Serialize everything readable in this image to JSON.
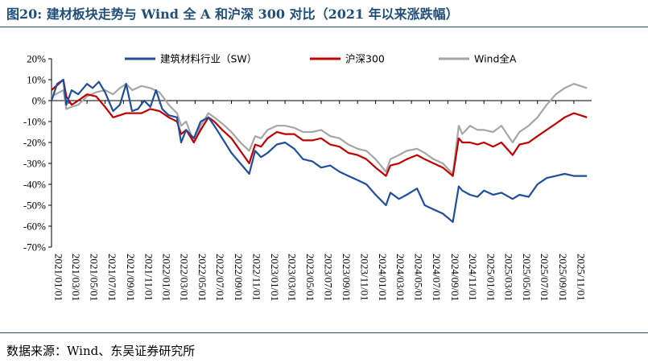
{
  "header": {
    "title": "图20:  建材板块走势与 Wind 全 A 和沪深 300 对比（2021 年以来涨跌幅）"
  },
  "footer": {
    "source": "数据来源：Wind、东吴证券研究所"
  },
  "chart_data": {
    "type": "line",
    "title": "图20:  建材板块走势与 Wind 全 A 和沪深 300 对比（2021 年以来涨跌幅）",
    "xlabel": "",
    "ylabel": "",
    "ylim": [
      -70,
      20
    ],
    "yticks": [
      20,
      10,
      0,
      -10,
      -20,
      -30,
      -40,
      -50,
      -60,
      -70
    ],
    "ytick_labels": [
      "20%",
      "10%",
      "0%",
      "-10%",
      "-20%",
      "-30%",
      "-40%",
      "-50%",
      "-60%",
      "-70%"
    ],
    "xlim": [
      "2021-01-01",
      "2025-12-31"
    ],
    "xtick_labels": [
      "2021/01/01",
      "2021/03/01",
      "2021/05/01",
      "2021/07/01",
      "2021/09/01",
      "2021/11/01",
      "2022/01/01",
      "2022/03/01",
      "2022/05/01",
      "2022/07/01",
      "2022/09/01",
      "2022/11/01",
      "2023/01/01",
      "2023/03/01",
      "2023/05/01",
      "2023/07/01",
      "2023/09/01",
      "2023/11/01",
      "2024/01/01",
      "2024/03/01",
      "2024/05/01",
      "2024/07/01",
      "2024/09/01",
      "2024/11/01",
      "2025/01/01",
      "2025/03/01",
      "2025/05/01",
      "2025/07/01",
      "2025/09/01",
      "2025/11/01"
    ],
    "grid": false,
    "legend": "top",
    "series": [
      {
        "name": "建筑材料行业（SW）",
        "color": "#1F4E9C",
        "x": [
          "2021-01-01",
          "2021-01-20",
          "2021-02-10",
          "2021-02-20",
          "2021-03-10",
          "2021-04-01",
          "2021-05-01",
          "2021-05-20",
          "2021-06-10",
          "2021-07-01",
          "2021-07-28",
          "2021-08-20",
          "2021-09-10",
          "2021-09-30",
          "2021-10-20",
          "2021-11-10",
          "2021-12-01",
          "2021-12-20",
          "2022-01-10",
          "2022-02-01",
          "2022-03-01",
          "2022-03-15",
          "2022-04-01",
          "2022-04-27",
          "2022-05-20",
          "2022-06-15",
          "2022-07-05",
          "2022-08-01",
          "2022-09-01",
          "2022-10-01",
          "2022-10-31",
          "2022-11-20",
          "2022-12-10",
          "2023-01-01",
          "2023-02-01",
          "2023-03-01",
          "2023-04-01",
          "2023-05-01",
          "2023-06-01",
          "2023-07-01",
          "2023-08-01",
          "2023-09-01",
          "2023-10-01",
          "2023-11-01",
          "2023-12-01",
          "2024-01-01",
          "2024-02-05",
          "2024-02-20",
          "2024-03-20",
          "2024-04-15",
          "2024-05-20",
          "2024-06-15",
          "2024-07-15",
          "2024-08-15",
          "2024-09-18",
          "2024-10-08",
          "2024-10-20",
          "2024-11-15",
          "2024-12-10",
          "2025-01-01",
          "2025-02-01",
          "2025-03-01",
          "2025-04-08",
          "2025-05-01",
          "2025-06-01",
          "2025-07-01",
          "2025-08-01",
          "2025-09-01",
          "2025-10-01",
          "2025-11-01",
          "2025-12-15"
        ],
        "y": [
          0,
          8,
          10,
          -2,
          5,
          3,
          8,
          6,
          9,
          4,
          -5,
          -2,
          8,
          -5,
          -4,
          0,
          -3,
          5,
          -4,
          -7,
          -8,
          -20,
          -14,
          -18,
          -10,
          -8,
          -12,
          -18,
          -25,
          -30,
          -35,
          -24,
          -27,
          -25,
          -21,
          -20,
          -23,
          -28,
          -29,
          -32,
          -31,
          -34,
          -36,
          -38,
          -40,
          -45,
          -50,
          -44,
          -47,
          -45,
          -42,
          -50,
          -52,
          -54,
          -58,
          -41,
          -43,
          -45,
          -46,
          -43,
          -45,
          -44,
          -47,
          -45,
          -46,
          -40,
          -37,
          -36,
          -35,
          -36,
          -36
        ]
      },
      {
        "name": "沪深300",
        "color": "#C00000",
        "x": [
          "2021-01-01",
          "2021-02-10",
          "2021-02-20",
          "2021-03-10",
          "2021-04-01",
          "2021-05-01",
          "2021-06-01",
          "2021-07-01",
          "2021-07-28",
          "2021-08-20",
          "2021-09-10",
          "2021-10-01",
          "2021-11-01",
          "2021-12-01",
          "2022-01-01",
          "2022-02-01",
          "2022-03-01",
          "2022-03-15",
          "2022-04-01",
          "2022-04-27",
          "2022-05-20",
          "2022-06-15",
          "2022-07-05",
          "2022-08-01",
          "2022-09-01",
          "2022-10-01",
          "2022-10-31",
          "2022-11-20",
          "2022-12-10",
          "2023-01-01",
          "2023-02-01",
          "2023-03-01",
          "2023-04-01",
          "2023-05-01",
          "2023-06-01",
          "2023-07-01",
          "2023-08-01",
          "2023-09-01",
          "2023-10-01",
          "2023-11-01",
          "2023-12-01",
          "2024-01-01",
          "2024-02-05",
          "2024-02-20",
          "2024-03-20",
          "2024-04-15",
          "2024-05-20",
          "2024-06-15",
          "2024-07-15",
          "2024-08-15",
          "2024-09-18",
          "2024-10-08",
          "2024-10-20",
          "2024-11-15",
          "2024-12-10",
          "2025-01-01",
          "2025-02-01",
          "2025-03-01",
          "2025-04-08",
          "2025-05-01",
          "2025-06-01",
          "2025-07-01",
          "2025-08-01",
          "2025-09-01",
          "2025-10-01",
          "2025-11-01",
          "2025-12-15"
        ],
        "y": [
          5,
          10,
          2,
          -2,
          0,
          3,
          2,
          -3,
          -8,
          -7,
          -6,
          -6,
          -6,
          -4,
          -5,
          -8,
          -10,
          -16,
          -14,
          -20,
          -14,
          -8,
          -10,
          -14,
          -18,
          -24,
          -30,
          -21,
          -22,
          -18,
          -15,
          -16,
          -16,
          -19,
          -19,
          -18,
          -21,
          -22,
          -25,
          -26,
          -28,
          -32,
          -36,
          -31,
          -30,
          -28,
          -26,
          -28,
          -30,
          -32,
          -36,
          -18,
          -20,
          -20,
          -21,
          -20,
          -22,
          -20,
          -26,
          -21,
          -20,
          -17,
          -14,
          -11,
          -8,
          -6,
          -8
        ]
      },
      {
        "name": "Wind全A",
        "color": "#A6A6A6",
        "x": [
          "2021-01-01",
          "2021-02-10",
          "2021-02-20",
          "2021-03-10",
          "2021-04-01",
          "2021-05-01",
          "2021-06-01",
          "2021-07-01",
          "2021-07-28",
          "2021-08-20",
          "2021-09-10",
          "2021-10-01",
          "2021-11-01",
          "2021-12-01",
          "2022-01-01",
          "2022-02-01",
          "2022-03-01",
          "2022-03-15",
          "2022-04-01",
          "2022-04-27",
          "2022-05-20",
          "2022-06-15",
          "2022-07-05",
          "2022-08-01",
          "2022-09-01",
          "2022-10-01",
          "2022-10-31",
          "2022-11-20",
          "2022-12-10",
          "2023-01-01",
          "2023-02-01",
          "2023-03-01",
          "2023-04-01",
          "2023-05-01",
          "2023-06-01",
          "2023-07-01",
          "2023-08-01",
          "2023-09-01",
          "2023-10-01",
          "2023-11-01",
          "2023-12-01",
          "2024-01-01",
          "2024-02-05",
          "2024-02-20",
          "2024-03-20",
          "2024-04-15",
          "2024-05-20",
          "2024-06-15",
          "2024-07-15",
          "2024-08-15",
          "2024-09-18",
          "2024-10-08",
          "2024-10-20",
          "2024-11-15",
          "2024-12-10",
          "2025-01-01",
          "2025-02-01",
          "2025-03-01",
          "2025-04-08",
          "2025-05-01",
          "2025-06-01",
          "2025-07-01",
          "2025-08-01",
          "2025-09-01",
          "2025-10-01",
          "2025-11-01",
          "2025-12-15"
        ],
        "y": [
          2,
          5,
          -4,
          -3,
          -2,
          2,
          4,
          5,
          3,
          6,
          8,
          5,
          7,
          6,
          4,
          -2,
          -6,
          -12,
          -10,
          -20,
          -12,
          -6,
          -8,
          -11,
          -15,
          -20,
          -24,
          -17,
          -18,
          -14,
          -12,
          -12,
          -13,
          -15,
          -15,
          -14,
          -17,
          -18,
          -21,
          -23,
          -24,
          -28,
          -34,
          -28,
          -26,
          -24,
          -23,
          -25,
          -28,
          -30,
          -35,
          -12,
          -16,
          -12,
          -14,
          -14,
          -15,
          -12,
          -20,
          -15,
          -12,
          -8,
          -2,
          3,
          6,
          8,
          6
        ]
      }
    ]
  }
}
